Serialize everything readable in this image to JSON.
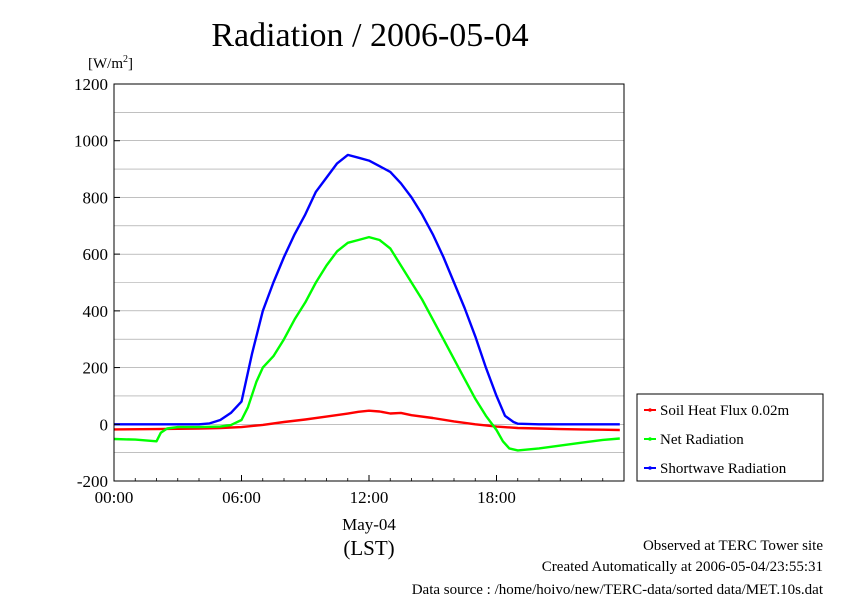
{
  "chart_data": {
    "type": "line",
    "title": "Radiation / 2006-05-04",
    "ylabel_unit": "[W/m",
    "ylabel_unit_sup": "2",
    "ylabel_unit_end": "]",
    "xlabel": "(LST)",
    "x_date_label": "May-04",
    "xlim": [
      0,
      24
    ],
    "ylim": [
      -200,
      1200
    ],
    "y_ticks": [
      1200,
      1000,
      800,
      600,
      400,
      200,
      0,
      -200
    ],
    "x_ticks": [
      {
        "value": 0,
        "label": "00:00"
      },
      {
        "value": 6,
        "label": "06:00"
      },
      {
        "value": 12,
        "label": "12:00"
      },
      {
        "value": 18,
        "label": "18:00"
      }
    ],
    "grid": true,
    "legend_position": "right",
    "series": [
      {
        "name": "Soil Heat Flux 0.02m",
        "color": "#ff0000",
        "x": [
          0,
          2,
          4,
          5,
          6,
          7,
          8,
          9,
          10,
          11,
          11.5,
          12,
          12.5,
          13,
          13.5,
          14,
          15,
          16,
          17,
          18,
          19,
          20,
          21,
          22,
          23,
          23.8
        ],
        "y": [
          -18,
          -17,
          -15,
          -13,
          -10,
          -2,
          8,
          17,
          27,
          38,
          44,
          48,
          45,
          38,
          40,
          32,
          22,
          10,
          0,
          -8,
          -13,
          -15,
          -17,
          -18,
          -19,
          -20
        ]
      },
      {
        "name": "Net Radiation",
        "color": "#00ff00",
        "x": [
          0,
          1,
          1.5,
          2,
          2.2,
          2.5,
          3,
          4,
          5,
          5.5,
          6,
          6.3,
          6.7,
          7,
          7.5,
          8,
          8.5,
          9,
          9.5,
          10,
          10.5,
          11,
          11.5,
          12,
          12.5,
          13,
          13.5,
          14,
          14.5,
          15,
          15.5,
          16,
          16.5,
          17,
          17.5,
          18,
          18.3,
          18.6,
          19,
          20,
          21,
          22,
          23,
          23.8
        ],
        "y": [
          -52,
          -54,
          -57,
          -60,
          -30,
          -15,
          -10,
          -10,
          -8,
          -3,
          15,
          60,
          150,
          200,
          240,
          300,
          370,
          430,
          500,
          560,
          610,
          640,
          650,
          660,
          650,
          620,
          560,
          500,
          440,
          370,
          300,
          230,
          160,
          90,
          30,
          -20,
          -60,
          -85,
          -92,
          -85,
          -75,
          -65,
          -55,
          -50
        ]
      },
      {
        "name": "Shortwave Radiation",
        "color": "#0000ff",
        "x": [
          0,
          2,
          4,
          4.5,
          5,
          5.5,
          6,
          6.5,
          7,
          7.5,
          8,
          8.5,
          9,
          9.5,
          10,
          10.5,
          11,
          11.5,
          12,
          12.5,
          13,
          13.5,
          14,
          14.5,
          15,
          15.5,
          16,
          16.5,
          17,
          17.5,
          18,
          18.4,
          18.8,
          19,
          20,
          22,
          23.8
        ],
        "y": [
          0,
          0,
          0,
          3,
          15,
          40,
          80,
          250,
          400,
          500,
          590,
          670,
          740,
          820,
          870,
          920,
          950,
          940,
          930,
          910,
          890,
          850,
          800,
          740,
          670,
          590,
          500,
          410,
          310,
          200,
          100,
          30,
          8,
          2,
          0,
          0,
          0
        ]
      }
    ]
  },
  "footer": {
    "site": "Observed at TERC Tower site",
    "created": "Created Automatically at 2006-05-04/23:55:31",
    "source": "Data source : /home/hoivo/new/TERC-data/sorted  data/MET.10s.dat"
  }
}
